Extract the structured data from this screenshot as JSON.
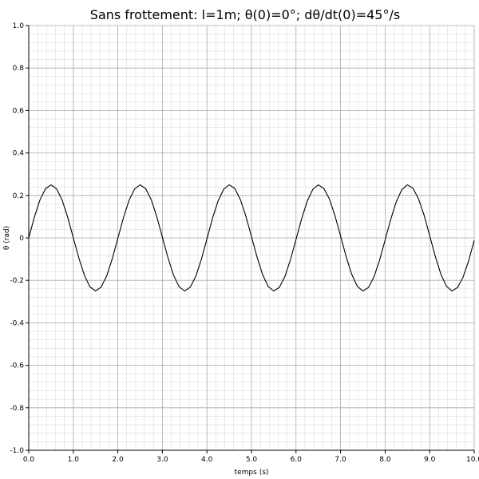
{
  "chart_data": {
    "type": "line",
    "title": "Sans frottement: l=1m; θ(0)=0°; dθ/dt(0)=45°/s",
    "xlabel": "temps (s)",
    "ylabel": "θ (rad)",
    "xlim": [
      0,
      10
    ],
    "ylim": [
      -1,
      1
    ],
    "grid": true,
    "x_ticks": [
      "0.0",
      "1.0",
      "2.0",
      "3.0",
      "4.0",
      "5.0",
      "6.0",
      "7.0",
      "8.0",
      "9.0",
      "10.0"
    ],
    "y_ticks": [
      "-1.0",
      "-0.8",
      "-0.6",
      "-0.4",
      "-0.2",
      "0",
      "0.2",
      "0.4",
      "0.6",
      "0.8",
      "1.0"
    ],
    "series": [
      {
        "color": "#000000",
        "x": [
          0,
          0.125,
          0.25,
          0.375,
          0.5,
          0.625,
          0.75,
          0.875,
          1.0,
          1.125,
          1.25,
          1.375,
          1.5,
          1.625,
          1.75,
          1.875,
          2.0,
          2.125,
          2.25,
          2.375,
          2.5,
          2.625,
          2.75,
          2.875,
          3.0,
          3.125,
          3.25,
          3.375,
          3.5,
          3.625,
          3.75,
          3.875,
          4.0,
          4.125,
          4.25,
          4.375,
          4.5,
          4.625,
          4.75,
          4.875,
          5.0,
          5.125,
          5.25,
          5.375,
          5.5,
          5.625,
          5.75,
          5.875,
          6.0,
          6.125,
          6.25,
          6.375,
          6.5,
          6.625,
          6.75,
          6.875,
          7.0,
          7.125,
          7.25,
          7.375,
          7.5,
          7.625,
          7.75,
          7.875,
          8.0,
          8.125,
          8.25,
          8.375,
          8.5,
          8.625,
          8.75,
          8.875,
          9.0,
          9.125,
          9.25,
          9.375,
          9.5,
          9.625,
          9.75,
          9.875,
          10.0
        ],
        "y": [
          0,
          0.097,
          0.178,
          0.231,
          0.25,
          0.231,
          0.178,
          0.097,
          0.001,
          -0.095,
          -0.176,
          -0.231,
          -0.25,
          -0.232,
          -0.179,
          -0.098,
          -0.002,
          0.094,
          0.176,
          0.23,
          0.25,
          0.232,
          0.18,
          0.1,
          0.003,
          -0.093,
          -0.175,
          -0.23,
          -0.25,
          -0.232,
          -0.181,
          -0.101,
          -0.005,
          0.092,
          0.174,
          0.229,
          0.25,
          0.233,
          0.181,
          0.102,
          0.006,
          -0.09,
          -0.173,
          -0.229,
          -0.25,
          -0.233,
          -0.182,
          -0.103,
          -0.007,
          0.089,
          0.172,
          0.228,
          0.25,
          0.233,
          0.183,
          0.104,
          0.009,
          -0.088,
          -0.171,
          -0.228,
          -0.25,
          -0.234,
          -0.184,
          -0.105,
          -0.01,
          0.087,
          0.17,
          0.227,
          0.25,
          0.234,
          0.184,
          0.107,
          0.011,
          -0.086,
          -0.17,
          -0.227,
          -0.25,
          -0.234,
          -0.185,
          -0.108,
          -0.012
        ]
      }
    ]
  }
}
